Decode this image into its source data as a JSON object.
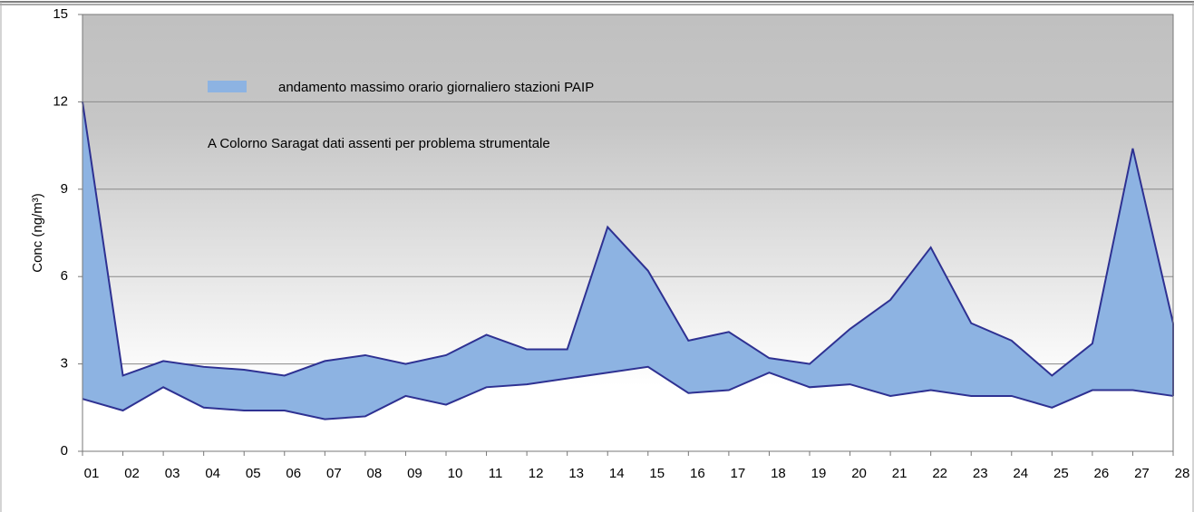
{
  "chart_data": {
    "type": "band",
    "y_label": "Conc (ng/m³)",
    "annotation": "A Colorno Saragat dati assenti  per problema strumentale",
    "categories": [
      "01",
      "02",
      "03",
      "04",
      "05",
      "06",
      "07",
      "08",
      "09",
      "10",
      "11",
      "12",
      "13",
      "14",
      "15",
      "16",
      "17",
      "18",
      "19",
      "20",
      "21",
      "22",
      "23",
      "24",
      "25",
      "26",
      "27",
      "28"
    ],
    "series": [
      {
        "name": "andamento massimo orario giornaliero stazioni PAIP",
        "color": "#8db3e2",
        "line_color": "#2e3192",
        "high": [
          12.0,
          2.6,
          3.1,
          2.9,
          2.8,
          2.6,
          3.1,
          3.3,
          3.0,
          3.3,
          4.0,
          3.5,
          3.5,
          7.7,
          6.2,
          3.8,
          4.1,
          3.2,
          3.0,
          4.2,
          5.2,
          7.0,
          4.4,
          3.8,
          2.6,
          3.7,
          10.4,
          4.4
        ],
        "low": [
          1.8,
          1.4,
          2.2,
          1.5,
          1.4,
          1.4,
          1.1,
          1.2,
          1.9,
          1.6,
          2.2,
          2.3,
          2.5,
          2.7,
          2.9,
          2.0,
          2.1,
          2.7,
          2.2,
          2.3,
          1.9,
          2.1,
          1.9,
          1.9,
          1.5,
          2.1,
          2.1,
          1.9
        ]
      }
    ],
    "ylim": [
      0,
      15
    ],
    "yticks": [
      0,
      3,
      6,
      9,
      12,
      15
    ],
    "grid": true
  }
}
